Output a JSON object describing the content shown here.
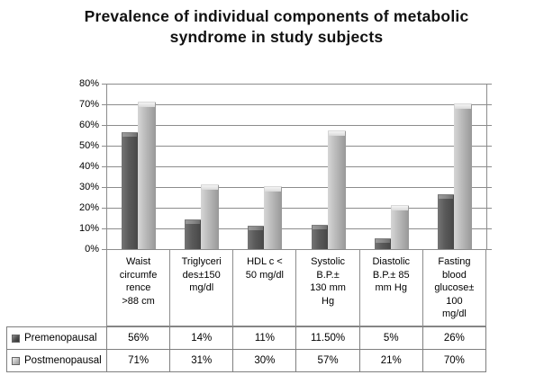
{
  "title_lines": "Prevalence of individual components of metabolic\nsyndrome in study subjects",
  "colors": {
    "premenopausal_bar": "#595959",
    "postmenopausal_bar": "#bfbfbf",
    "gridline": "#8c8c8c",
    "table_border": "#7f7f7f",
    "background": "#ffffff",
    "text": "#000000"
  },
  "chart_data": {
    "type": "bar",
    "title": "Prevalence of individual components of metabolic syndrome in study subjects",
    "xlabel": "",
    "ylabel": "",
    "ylim": [
      0,
      80
    ],
    "y_tick_labels": [
      "80%",
      "70%",
      "60%",
      "50%",
      "40%",
      "30%",
      "20%",
      "10%",
      "0%"
    ],
    "grid": "horizontal",
    "legend_position": "bottom-table",
    "categories": [
      "Waist\ncircumfe\nrence\n>88 cm",
      "Triglyceri\ndes±150\nmg/dl",
      "HDL c <\n50 mg/dl",
      "Systolic\nB.P.±\n130 mm\nHg",
      "Diastolic\nB.P.± 85\nmm Hg",
      "Fasting\nblood\nglucose±\n100\nmg/dl"
    ],
    "series": [
      {
        "name": "Premenopausal",
        "values": [
          56,
          14,
          11,
          11.5,
          5,
          26
        ],
        "display_values": [
          "56%",
          "14%",
          "11%",
          "11.50%",
          "5%",
          "26%"
        ],
        "color": "#595959"
      },
      {
        "name": "Postmenopausal",
        "values": [
          71,
          31,
          30,
          57,
          21,
          70
        ],
        "display_values": [
          "71%",
          "31%",
          "30%",
          "57%",
          "21%",
          "70%"
        ],
        "color": "#bfbfbf"
      }
    ]
  }
}
